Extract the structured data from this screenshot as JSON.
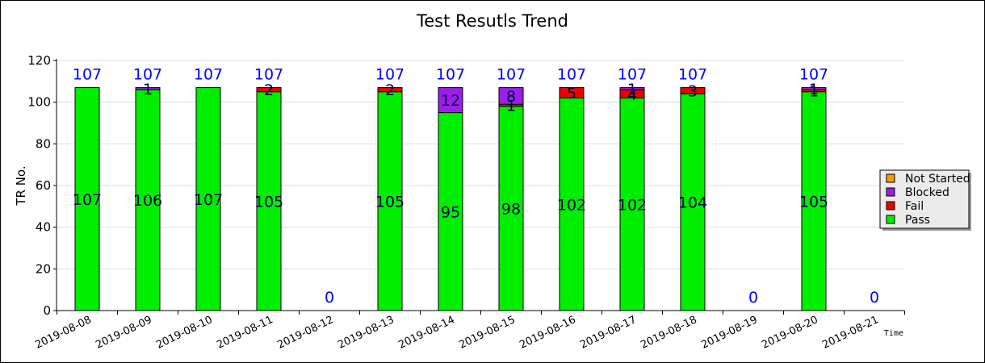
{
  "chart_data": {
    "type": "bar",
    "stacked": true,
    "title": "Test Resutls Trend",
    "xlabel": "Time",
    "ylabel": "TR No.",
    "ylim": [
      0,
      120
    ],
    "yticks": [
      0,
      20,
      40,
      60,
      80,
      100,
      120
    ],
    "grid": true,
    "legend_position": "right",
    "categories": [
      "2019-08-08",
      "2019-08-09",
      "2019-08-10",
      "2019-08-11",
      "2019-08-12",
      "2019-08-13",
      "2019-08-14",
      "2019-08-15",
      "2019-08-16",
      "2019-08-17",
      "2019-08-18",
      "2019-08-19",
      "2019-08-20",
      "2019-08-21"
    ],
    "series": [
      {
        "name": "Pass",
        "color": "#00ee00",
        "values": [
          107,
          106,
          107,
          105,
          0,
          105,
          95,
          98,
          102,
          102,
          104,
          0,
          105,
          0
        ]
      },
      {
        "name": "Fail",
        "color": "#ee0000",
        "values": [
          0,
          0,
          0,
          2,
          0,
          2,
          0,
          1,
          5,
          4,
          3,
          0,
          1,
          0
        ]
      },
      {
        "name": "Blocked",
        "color": "#9b1fe8",
        "values": [
          0,
          1,
          0,
          0,
          0,
          0,
          12,
          8,
          0,
          1,
          0,
          0,
          1,
          0
        ]
      },
      {
        "name": "Not Started",
        "color": "#ff9900",
        "values": [
          0,
          0,
          0,
          0,
          0,
          0,
          0,
          0,
          0,
          0,
          0,
          0,
          0,
          0
        ]
      }
    ],
    "totals": [
      107,
      107,
      107,
      107,
      0,
      107,
      107,
      107,
      107,
      107,
      107,
      0,
      107,
      0
    ]
  }
}
